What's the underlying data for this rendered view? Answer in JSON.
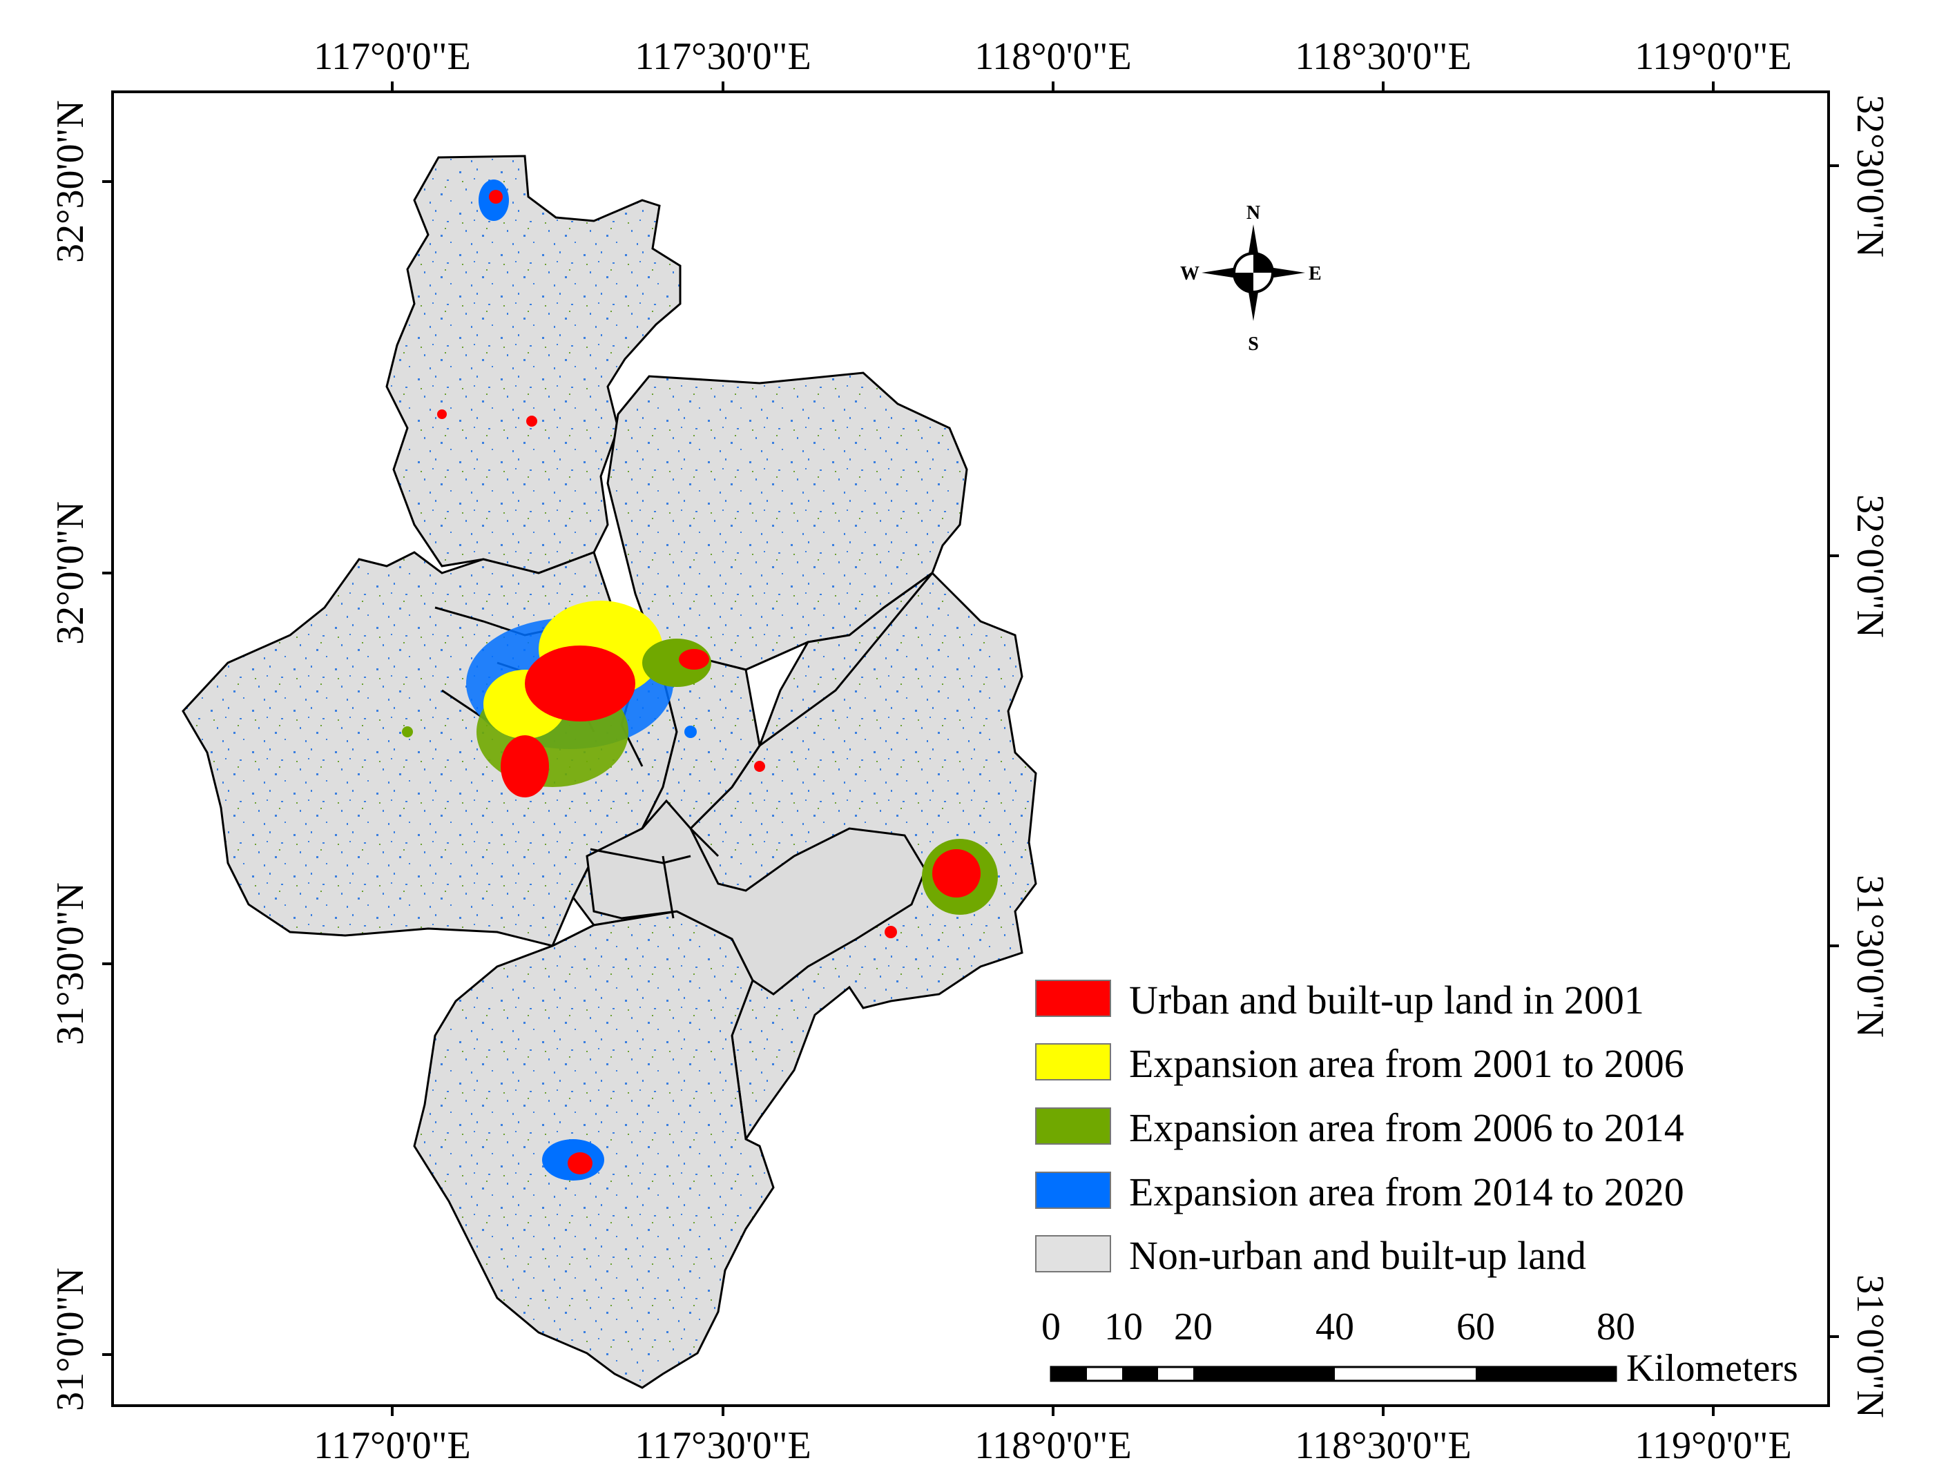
{
  "map": {
    "top_longitude_labels": [
      "117°0'0\"E",
      "117°30'0\"E",
      "118°0'0\"E",
      "118°30'0\"E",
      "119°0'0\"E"
    ],
    "bottom_longitude_labels": [
      "117°0'0\"E",
      "117°30'0\"E",
      "118°0'0\"E",
      "118°30'0\"E",
      "119°0'0\"E"
    ],
    "left_latitude_labels": [
      "32°30'0\"N",
      "32°0'0\"N",
      "31°30'0\"N",
      "31°0'0\"N"
    ],
    "right_latitude_labels": [
      "32°30'0\"N",
      "32°0'0\"N",
      "31°30'0\"N",
      "31°0'0\"N"
    ]
  },
  "compass": {
    "north": "N",
    "south": "S",
    "east": "E",
    "west": "W"
  },
  "legend": {
    "items": [
      {
        "label": "Urban and built-up land in 2001",
        "color": "#ff0000"
      },
      {
        "label": "Expansion area from 2001 to 2006",
        "color": "#ffff00"
      },
      {
        "label": "Expansion area from 2006 to 2014",
        "color": "#70a800"
      },
      {
        "label": "Expansion area from 2014 to 2020",
        "color": "#0070ff"
      },
      {
        "label": "Non-urban and built-up land",
        "color": "#e1e1e1"
      }
    ]
  },
  "scale_bar": {
    "ticks": [
      "0",
      "10",
      "20",
      "40",
      "60",
      "80"
    ],
    "unit": "Kilometers"
  }
}
